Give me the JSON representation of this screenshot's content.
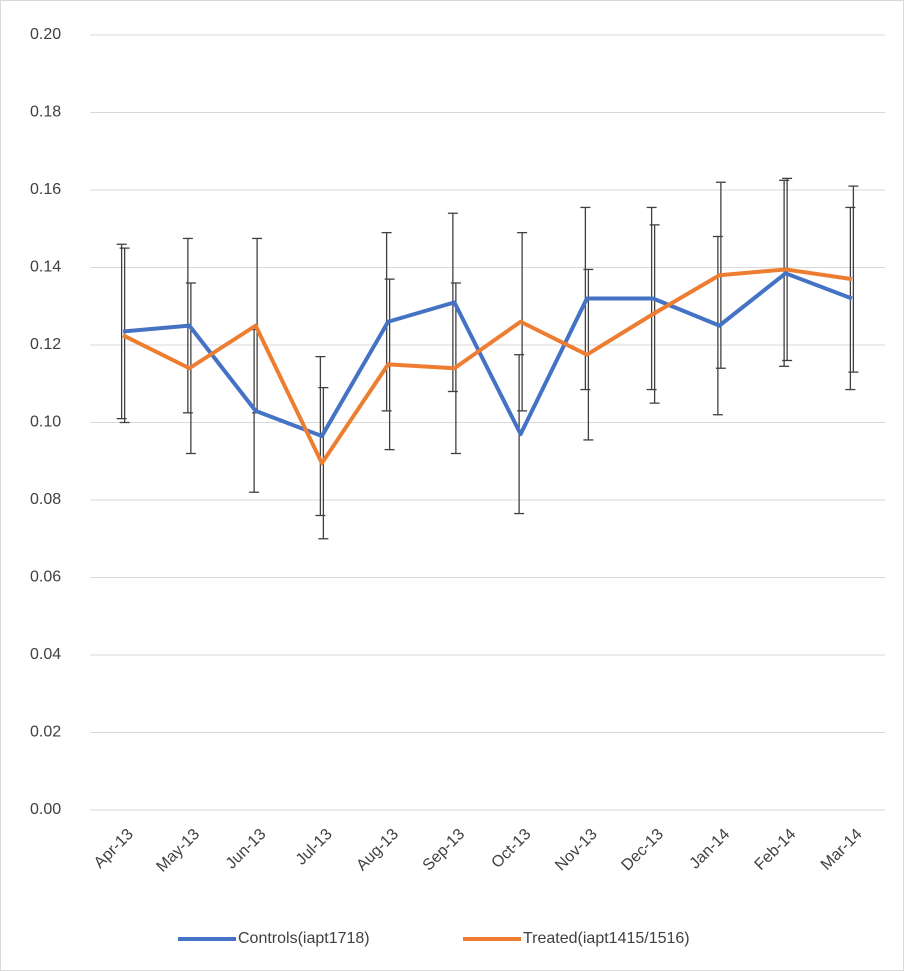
{
  "chart_data": {
    "type": "line",
    "categories": [
      "Apr-13",
      "May-13",
      "Jun-13",
      "Jul-13",
      "Aug-13",
      "Sep-13",
      "Oct-13",
      "Nov-13",
      "Dec-13",
      "Jan-14",
      "Feb-14",
      "Mar-14"
    ],
    "series": [
      {
        "name": "Controls(iapt1718)",
        "color": "#4472c4",
        "values": [
          0.1235,
          0.125,
          0.103,
          0.0965,
          0.126,
          0.131,
          0.097,
          0.132,
          0.132,
          0.125,
          0.1385,
          0.132
        ],
        "errors": [
          0.0225,
          0.0225,
          0.021,
          0.0205,
          0.023,
          0.023,
          0.0205,
          0.0235,
          0.0235,
          0.023,
          0.024,
          0.0235
        ]
      },
      {
        "name": "Treated(iapt1415/1516)",
        "color": "#ed7d31",
        "values": [
          0.1225,
          0.114,
          0.125,
          0.0895,
          0.115,
          0.114,
          0.126,
          0.1175,
          0.128,
          0.138,
          0.1395,
          0.137
        ],
        "errors": [
          0.0225,
          0.022,
          0.0225,
          0.0195,
          0.022,
          0.022,
          0.023,
          0.022,
          0.023,
          0.024,
          0.0235,
          0.024
        ]
      }
    ],
    "ylim": [
      0,
      0.2
    ],
    "yticks": [
      {
        "value": 0,
        "label": "0.00"
      },
      0.02,
      0.04,
      0.06,
      0.08,
      {
        "value": 0.1,
        "label": "0.10"
      },
      0.12,
      0.14,
      0.16,
      0.18,
      {
        "value": 0.2,
        "label": "0.20"
      }
    ],
    "grid": true,
    "legend": "bottom"
  }
}
